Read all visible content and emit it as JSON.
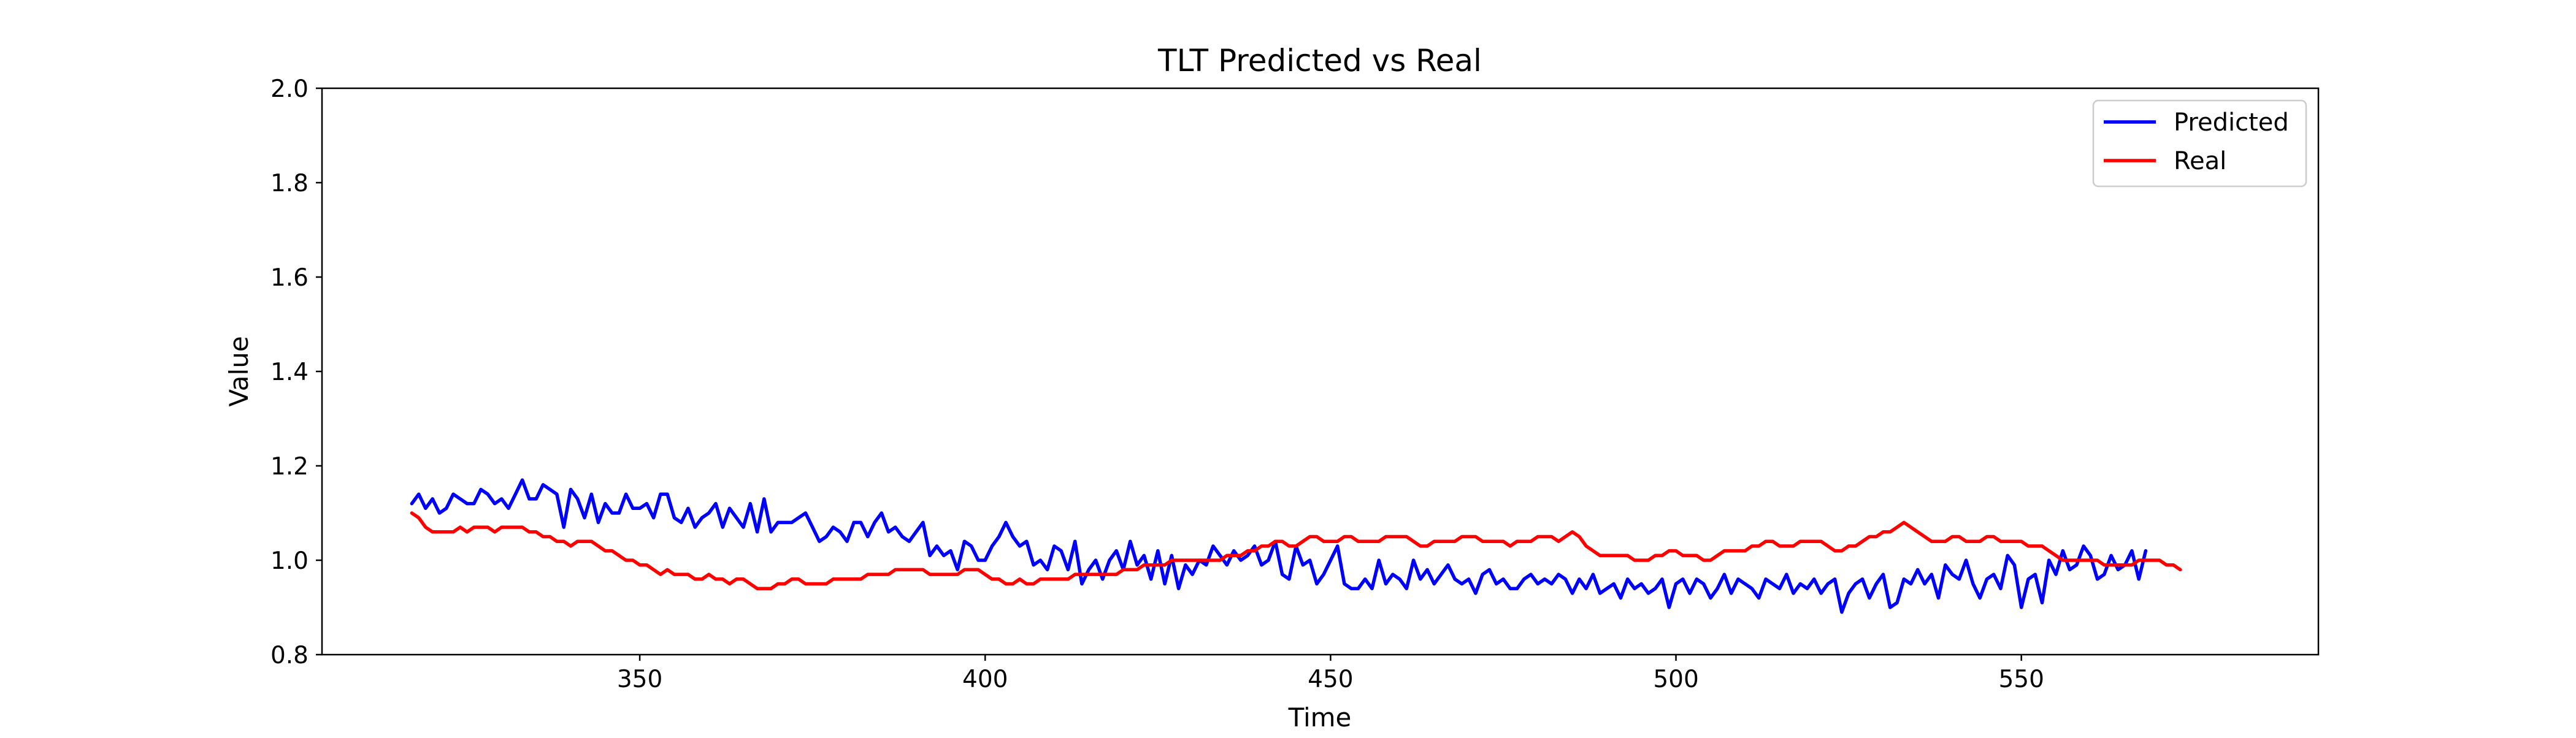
{
  "chart_data": {
    "type": "line",
    "title": "TLT Predicted vs Real",
    "xlabel": "Time",
    "ylabel": "Value",
    "xlim": [
      304,
      593
    ],
    "ylim": [
      0.8,
      2.0
    ],
    "xticks": [
      350,
      400,
      450,
      500,
      550
    ],
    "yticks": [
      0.8,
      1.0,
      1.2,
      1.4,
      1.6,
      1.8,
      2.0
    ],
    "ytick_labels": [
      "0.8",
      "1.0",
      "1.2",
      "1.4",
      "1.6",
      "1.8",
      "2.0"
    ],
    "grid": false,
    "legend_position": "top-right",
    "x_start": 317,
    "x_step": 1,
    "series": [
      {
        "name": "Predicted",
        "color": "#0000ff",
        "values": [
          1.12,
          1.14,
          1.11,
          1.13,
          1.1,
          1.11,
          1.14,
          1.13,
          1.12,
          1.12,
          1.15,
          1.14,
          1.12,
          1.13,
          1.11,
          1.14,
          1.17,
          1.13,
          1.13,
          1.16,
          1.15,
          1.14,
          1.07,
          1.15,
          1.13,
          1.09,
          1.14,
          1.08,
          1.12,
          1.1,
          1.1,
          1.14,
          1.11,
          1.11,
          1.12,
          1.09,
          1.14,
          1.14,
          1.09,
          1.08,
          1.11,
          1.07,
          1.09,
          1.1,
          1.12,
          1.07,
          1.11,
          1.09,
          1.07,
          1.12,
          1.06,
          1.13,
          1.06,
          1.08,
          1.08,
          1.08,
          1.09,
          1.1,
          1.07,
          1.04,
          1.05,
          1.07,
          1.06,
          1.04,
          1.08,
          1.08,
          1.05,
          1.08,
          1.1,
          1.06,
          1.07,
          1.05,
          1.04,
          1.06,
          1.08,
          1.01,
          1.03,
          1.01,
          1.02,
          0.98,
          1.04,
          1.03,
          1.0,
          1.0,
          1.03,
          1.05,
          1.08,
          1.05,
          1.03,
          1.04,
          0.99,
          1.0,
          0.98,
          1.03,
          1.02,
          0.98,
          1.04,
          0.95,
          0.98,
          1.0,
          0.96,
          1.0,
          1.02,
          0.98,
          1.04,
          0.99,
          1.01,
          0.96,
          1.02,
          0.95,
          1.01,
          0.94,
          0.99,
          0.97,
          1.0,
          0.99,
          1.03,
          1.01,
          0.99,
          1.02,
          1.0,
          1.01,
          1.03,
          0.99,
          1.0,
          1.04,
          0.97,
          0.96,
          1.03,
          0.99,
          1.0,
          0.95,
          0.97,
          1.0,
          1.03,
          0.95,
          0.94,
          0.94,
          0.96,
          0.94,
          1.0,
          0.95,
          0.97,
          0.96,
          0.94,
          1.0,
          0.96,
          0.98,
          0.95,
          0.97,
          0.99,
          0.96,
          0.95,
          0.96,
          0.93,
          0.97,
          0.98,
          0.95,
          0.96,
          0.94,
          0.94,
          0.96,
          0.97,
          0.95,
          0.96,
          0.95,
          0.97,
          0.96,
          0.93,
          0.96,
          0.94,
          0.97,
          0.93,
          0.94,
          0.95,
          0.92,
          0.96,
          0.94,
          0.95,
          0.93,
          0.94,
          0.96,
          0.9,
          0.95,
          0.96,
          0.93,
          0.96,
          0.95,
          0.92,
          0.94,
          0.97,
          0.93,
          0.96,
          0.95,
          0.94,
          0.92,
          0.96,
          0.95,
          0.94,
          0.97,
          0.93,
          0.95,
          0.94,
          0.96,
          0.93,
          0.95,
          0.96,
          0.89,
          0.93,
          0.95,
          0.96,
          0.92,
          0.95,
          0.97,
          0.9,
          0.91,
          0.96,
          0.95,
          0.98,
          0.95,
          0.97,
          0.92,
          0.99,
          0.97,
          0.96,
          1.0,
          0.95,
          0.92,
          0.96,
          0.97,
          0.94,
          1.01,
          0.99,
          0.9,
          0.96,
          0.97,
          0.91,
          1.0,
          0.97,
          1.02,
          0.98,
          0.99,
          1.03,
          1.01,
          0.96,
          0.97,
          1.01,
          0.98,
          0.99,
          1.02,
          0.96,
          1.02
        ]
      },
      {
        "name": "Real",
        "color": "#ff0000",
        "values": [
          1.1,
          1.09,
          1.07,
          1.06,
          1.06,
          1.06,
          1.06,
          1.07,
          1.06,
          1.07,
          1.07,
          1.07,
          1.06,
          1.07,
          1.07,
          1.07,
          1.07,
          1.06,
          1.06,
          1.05,
          1.05,
          1.04,
          1.04,
          1.03,
          1.04,
          1.04,
          1.04,
          1.03,
          1.02,
          1.02,
          1.01,
          1.0,
          1.0,
          0.99,
          0.99,
          0.98,
          0.97,
          0.98,
          0.97,
          0.97,
          0.97,
          0.96,
          0.96,
          0.97,
          0.96,
          0.96,
          0.95,
          0.96,
          0.96,
          0.95,
          0.94,
          0.94,
          0.94,
          0.95,
          0.95,
          0.96,
          0.96,
          0.95,
          0.95,
          0.95,
          0.95,
          0.96,
          0.96,
          0.96,
          0.96,
          0.96,
          0.97,
          0.97,
          0.97,
          0.97,
          0.98,
          0.98,
          0.98,
          0.98,
          0.98,
          0.97,
          0.97,
          0.97,
          0.97,
          0.97,
          0.98,
          0.98,
          0.98,
          0.97,
          0.96,
          0.96,
          0.95,
          0.95,
          0.96,
          0.95,
          0.95,
          0.96,
          0.96,
          0.96,
          0.96,
          0.96,
          0.97,
          0.97,
          0.97,
          0.97,
          0.97,
          0.97,
          0.97,
          0.98,
          0.98,
          0.98,
          0.99,
          0.99,
          0.99,
          0.99,
          1.0,
          1.0,
          1.0,
          1.0,
          1.0,
          1.0,
          1.0,
          1.0,
          1.01,
          1.01,
          1.01,
          1.02,
          1.02,
          1.03,
          1.03,
          1.04,
          1.04,
          1.03,
          1.03,
          1.04,
          1.05,
          1.05,
          1.04,
          1.04,
          1.04,
          1.05,
          1.05,
          1.04,
          1.04,
          1.04,
          1.04,
          1.05,
          1.05,
          1.05,
          1.05,
          1.04,
          1.03,
          1.03,
          1.04,
          1.04,
          1.04,
          1.04,
          1.05,
          1.05,
          1.05,
          1.04,
          1.04,
          1.04,
          1.04,
          1.03,
          1.04,
          1.04,
          1.04,
          1.05,
          1.05,
          1.05,
          1.04,
          1.05,
          1.06,
          1.05,
          1.03,
          1.02,
          1.01,
          1.01,
          1.01,
          1.01,
          1.01,
          1.0,
          1.0,
          1.0,
          1.01,
          1.01,
          1.02,
          1.02,
          1.01,
          1.01,
          1.01,
          1.0,
          1.0,
          1.01,
          1.02,
          1.02,
          1.02,
          1.02,
          1.03,
          1.03,
          1.04,
          1.04,
          1.03,
          1.03,
          1.03,
          1.04,
          1.04,
          1.04,
          1.04,
          1.03,
          1.02,
          1.02,
          1.03,
          1.03,
          1.04,
          1.05,
          1.05,
          1.06,
          1.06,
          1.07,
          1.08,
          1.07,
          1.06,
          1.05,
          1.04,
          1.04,
          1.04,
          1.05,
          1.05,
          1.04,
          1.04,
          1.04,
          1.05,
          1.05,
          1.04,
          1.04,
          1.04,
          1.04,
          1.03,
          1.03,
          1.03,
          1.02,
          1.01,
          1.0,
          1.0,
          1.0,
          1.0,
          1.0,
          1.0,
          0.99,
          0.99,
          0.99,
          0.99,
          0.99,
          1.0,
          1.0,
          1.0,
          1.0,
          0.99,
          0.99,
          0.98
        ]
      }
    ]
  }
}
